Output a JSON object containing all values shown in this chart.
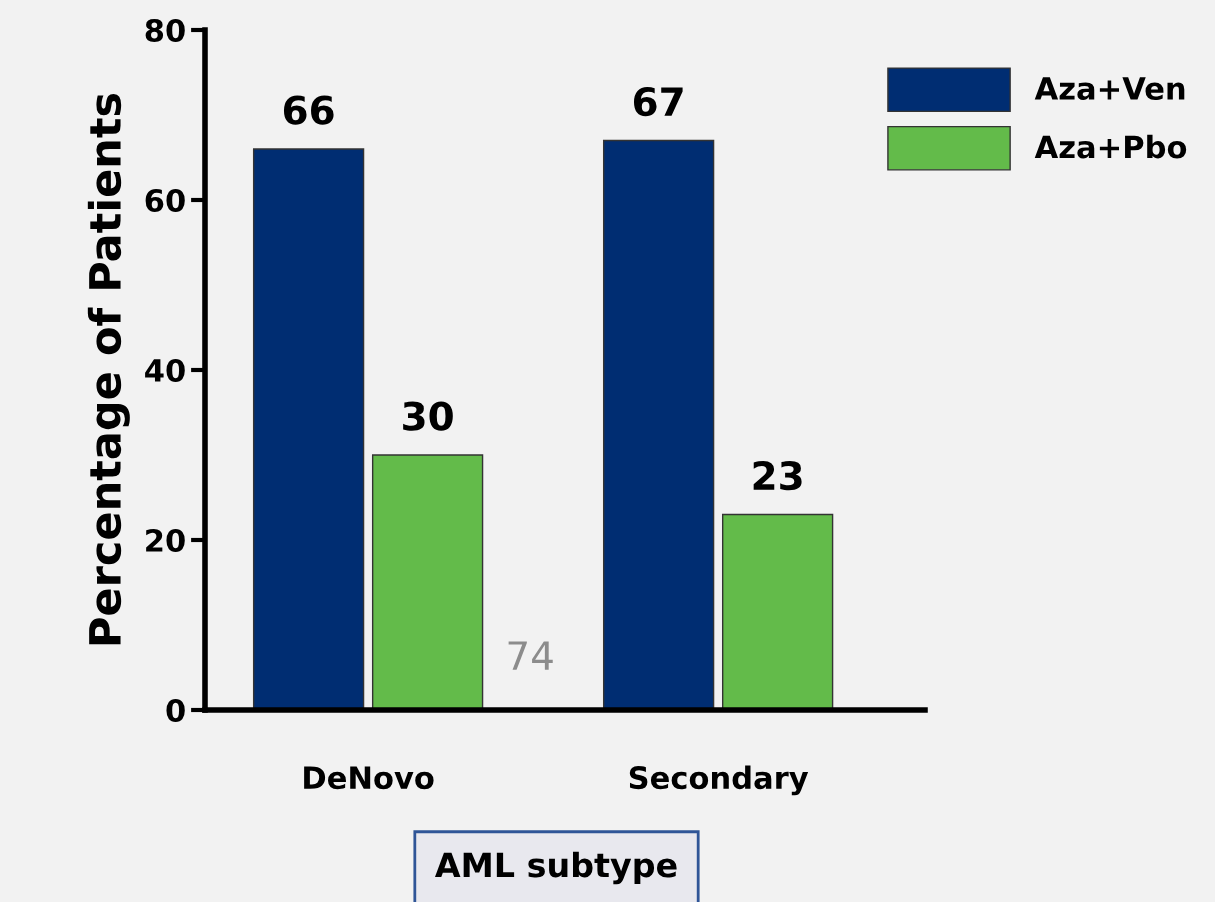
{
  "chart_data": {
    "type": "bar",
    "ylabel": "Percentage of Patients",
    "xlabel": "AML subtype",
    "categories": [
      "DeNovo",
      "Secondary"
    ],
    "series": [
      {
        "name": "Aza+Ven",
        "color": "#002d72",
        "values": [
          66,
          67
        ]
      },
      {
        "name": "Aza+Pbo",
        "color": "#63bb4a",
        "values": [
          30,
          23
        ]
      }
    ],
    "ylim": [
      0,
      80
    ],
    "yticks": [
      0,
      20,
      40,
      60,
      80
    ],
    "grid": false,
    "legend": "top right",
    "data_labels": true,
    "annotations": [
      "74"
    ]
  }
}
